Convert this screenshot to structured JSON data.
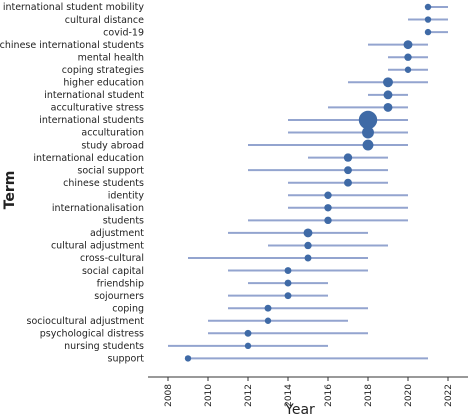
{
  "chart_data": {
    "type": "scatter",
    "xlabel": "Year",
    "ylabel": "Term",
    "xlim": [
      2007,
      2023
    ],
    "xticks": [
      2008,
      2010,
      2012,
      2014,
      2016,
      2018,
      2020,
      2022
    ],
    "grid": false,
    "colors": {
      "line": "#93a4cf",
      "point": "#3f6aa6"
    },
    "encoding": "line spans first quartile to third quartile of usage year; dot at median year; dot size proportional to term frequency",
    "terms": [
      {
        "term": "international student mobility",
        "start": 2021,
        "median": 2021,
        "end": 2022,
        "frequency": 6
      },
      {
        "term": "cultural distance",
        "start": 2020,
        "median": 2021,
        "end": 2022,
        "frequency": 6
      },
      {
        "term": "covid-19",
        "start": 2021,
        "median": 2021,
        "end": 2022,
        "frequency": 6
      },
      {
        "term": "chinese international students",
        "start": 2018,
        "median": 2020,
        "end": 2021,
        "frequency": 11
      },
      {
        "term": "mental health",
        "start": 2019,
        "median": 2020,
        "end": 2021,
        "frequency": 8
      },
      {
        "term": "coping strategies",
        "start": 2019,
        "median": 2020,
        "end": 2021,
        "frequency": 6
      },
      {
        "term": "higher education",
        "start": 2017,
        "median": 2019,
        "end": 2021,
        "frequency": 13
      },
      {
        "term": "international student",
        "start": 2018,
        "median": 2019,
        "end": 2020,
        "frequency": 11
      },
      {
        "term": "acculturative stress",
        "start": 2016,
        "median": 2019,
        "end": 2020,
        "frequency": 11
      },
      {
        "term": "international students",
        "start": 2014,
        "median": 2018,
        "end": 2020,
        "frequency": 30
      },
      {
        "term": "acculturation",
        "start": 2014,
        "median": 2018,
        "end": 2020,
        "frequency": 17
      },
      {
        "term": "study abroad",
        "start": 2012,
        "median": 2018,
        "end": 2020,
        "frequency": 15
      },
      {
        "term": "international education",
        "start": 2015,
        "median": 2017,
        "end": 2019,
        "frequency": 10
      },
      {
        "term": "social support",
        "start": 2012,
        "median": 2017,
        "end": 2019,
        "frequency": 9
      },
      {
        "term": "chinese students",
        "start": 2014,
        "median": 2017,
        "end": 2019,
        "frequency": 9
      },
      {
        "term": "identity",
        "start": 2014,
        "median": 2016,
        "end": 2020,
        "frequency": 8
      },
      {
        "term": "internationalisation",
        "start": 2014,
        "median": 2016,
        "end": 2020,
        "frequency": 8
      },
      {
        "term": "students",
        "start": 2012,
        "median": 2016,
        "end": 2020,
        "frequency": 8
      },
      {
        "term": "adjustment",
        "start": 2011,
        "median": 2015,
        "end": 2018,
        "frequency": 11
      },
      {
        "term": "cultural adjustment",
        "start": 2013,
        "median": 2015,
        "end": 2019,
        "frequency": 8
      },
      {
        "term": "cross-cultural",
        "start": 2009,
        "median": 2015,
        "end": 2018,
        "frequency": 7
      },
      {
        "term": "social capital",
        "start": 2011,
        "median": 2014,
        "end": 2018,
        "frequency": 7
      },
      {
        "term": "friendship",
        "start": 2012,
        "median": 2014,
        "end": 2016,
        "frequency": 7
      },
      {
        "term": "sojourners",
        "start": 2011,
        "median": 2014,
        "end": 2016,
        "frequency": 7
      },
      {
        "term": "coping",
        "start": 2011,
        "median": 2013,
        "end": 2018,
        "frequency": 7
      },
      {
        "term": "sociocultural adjustment",
        "start": 2010,
        "median": 2013,
        "end": 2017,
        "frequency": 6
      },
      {
        "term": "psychological distress",
        "start": 2010,
        "median": 2012,
        "end": 2018,
        "frequency": 7
      },
      {
        "term": "nursing students",
        "start": 2008,
        "median": 2012,
        "end": 2016,
        "frequency": 6
      },
      {
        "term": "support",
        "start": 2009,
        "median": 2009,
        "end": 2021,
        "frequency": 6
      }
    ]
  }
}
